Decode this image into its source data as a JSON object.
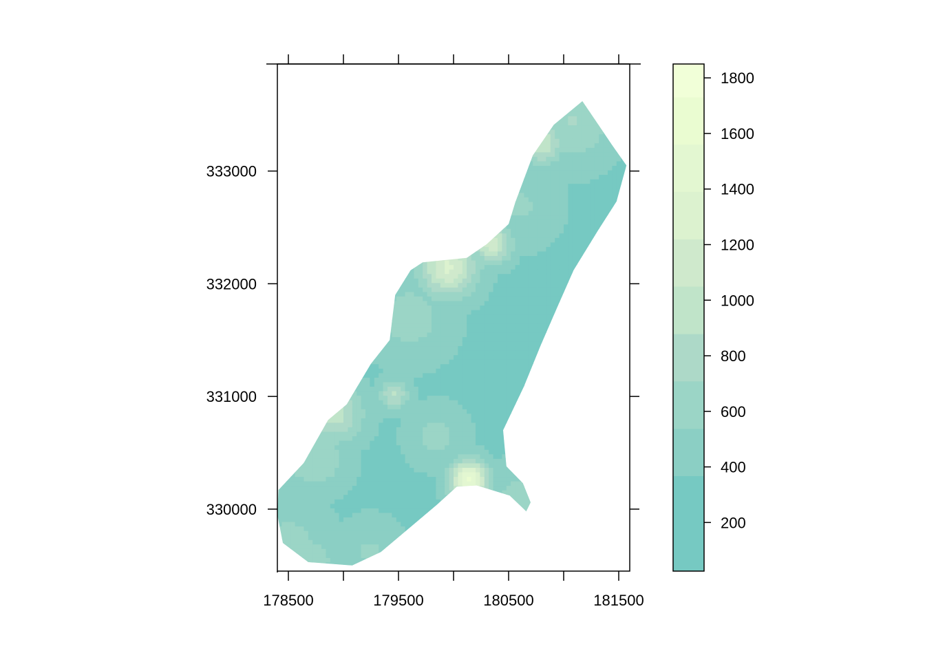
{
  "chart_data": {
    "type": "heatmap",
    "title": "",
    "xlabel": "",
    "ylabel": "",
    "xlim": [
      178400,
      181600
    ],
    "ylim": [
      329450,
      333950
    ],
    "x_ticks": [
      178500,
      179000,
      179500,
      180000,
      180500,
      181000,
      181500
    ],
    "x_tick_labels": [
      "178500",
      "",
      "179500",
      "",
      "180500",
      "",
      "181500"
    ],
    "y_ticks": [
      330000,
      331000,
      332000,
      333000
    ],
    "y_tick_labels": [
      "330000",
      "331000",
      "332000",
      "333000"
    ],
    "colorbar": {
      "range": [
        25,
        1850
      ],
      "levels": [
        25,
        368,
        538,
        709,
        879,
        1050,
        1220,
        1391,
        1561,
        1731,
        1850
      ],
      "colors": [
        "#76c9c2",
        "#8bcfc4",
        "#9bd5c6",
        "#add9c8",
        "#c0e4c9",
        "#cfe9cc",
        "#dcf2cf",
        "#e3f7d1",
        "#eafcd1",
        "#f1ffd8"
      ],
      "ticks": [
        200,
        400,
        600,
        800,
        1000,
        1200,
        1400,
        1600,
        1800
      ],
      "tick_labels": [
        "200",
        "400",
        "600",
        "800",
        "1000",
        "1200",
        "1400",
        "1600",
        "1800"
      ]
    },
    "region": {
      "description_free": true,
      "outline": [
        [
          178410,
          330170
        ],
        [
          178640,
          330410
        ],
        [
          178860,
          330790
        ],
        [
          179030,
          330930
        ],
        [
          179250,
          331290
        ],
        [
          179420,
          331500
        ],
        [
          179470,
          331900
        ],
        [
          179610,
          332120
        ],
        [
          179720,
          332190
        ],
        [
          180120,
          332230
        ],
        [
          180300,
          332350
        ],
        [
          180500,
          332530
        ],
        [
          180560,
          332720
        ],
        [
          180720,
          333140
        ],
        [
          180910,
          333410
        ],
        [
          181170,
          333620
        ],
        [
          181330,
          333390
        ],
        [
          181440,
          333230
        ],
        [
          181570,
          333050
        ],
        [
          181480,
          332730
        ],
        [
          181310,
          332470
        ],
        [
          181090,
          332120
        ],
        [
          180950,
          331810
        ],
        [
          180790,
          331450
        ],
        [
          180640,
          331090
        ],
        [
          180450,
          330700
        ],
        [
          180480,
          330380
        ],
        [
          180630,
          330230
        ],
        [
          180700,
          330060
        ],
        [
          180660,
          329980
        ],
        [
          180510,
          330120
        ],
        [
          180210,
          330210
        ],
        [
          180030,
          330200
        ],
        [
          179850,
          330040
        ],
        [
          179620,
          329850
        ],
        [
          179340,
          329620
        ],
        [
          179080,
          329500
        ],
        [
          178680,
          329530
        ],
        [
          178450,
          329700
        ],
        [
          178400,
          329950
        ]
      ],
      "base_value": 330,
      "hotspots": [
        {
          "x": 180140,
          "y": 330260,
          "r": 120,
          "value": 1600
        },
        {
          "x": 179950,
          "y": 332150,
          "r": 180,
          "value": 1250
        },
        {
          "x": 180350,
          "y": 332360,
          "r": 120,
          "value": 1150
        },
        {
          "x": 180800,
          "y": 333250,
          "r": 130,
          "value": 1050
        },
        {
          "x": 178920,
          "y": 330850,
          "r": 180,
          "value": 950
        },
        {
          "x": 179460,
          "y": 331020,
          "r": 90,
          "value": 900
        },
        {
          "x": 178740,
          "y": 330450,
          "r": 200,
          "value": 700
        },
        {
          "x": 179600,
          "y": 331700,
          "r": 260,
          "value": 620
        },
        {
          "x": 181080,
          "y": 333450,
          "r": 260,
          "value": 720
        },
        {
          "x": 180600,
          "y": 332700,
          "r": 240,
          "value": 560
        },
        {
          "x": 178500,
          "y": 329700,
          "r": 260,
          "value": 600
        },
        {
          "x": 178700,
          "y": 329550,
          "r": 150,
          "value": 700
        },
        {
          "x": 179250,
          "y": 329620,
          "r": 200,
          "value": 560
        },
        {
          "x": 179850,
          "y": 330650,
          "r": 180,
          "value": 600
        },
        {
          "x": 180600,
          "y": 330100,
          "r": 200,
          "value": 620
        }
      ]
    }
  }
}
